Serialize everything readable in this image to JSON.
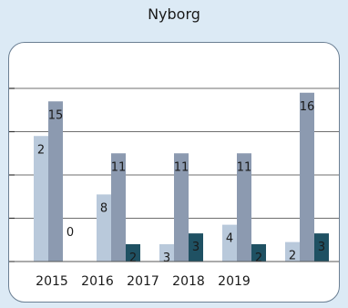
{
  "chart_data": {
    "type": "bar",
    "title": "Nyborg",
    "categories": [
      "2015",
      "2016",
      "2017",
      "2018",
      "2019"
    ],
    "series": [
      {
        "values": [
          29,
          15.5,
          4,
          8.5,
          4.5
        ],
        "labels": [
          "2",
          "8",
          "3",
          "4",
          "2"
        ],
        "color": "#b9c9db"
      },
      {
        "values": [
          37,
          25,
          25,
          25,
          39
        ],
        "labels": [
          "15",
          "11",
          "11",
          "11",
          "16"
        ],
        "color": "#8c9ab0"
      },
      {
        "values": [
          0,
          4,
          6.5,
          4,
          6.5
        ],
        "labels": [
          "0",
          "2",
          "3",
          "2",
          "3"
        ],
        "color": "#1f5163"
      }
    ],
    "ylim": [
      0,
      40
    ],
    "grid": true,
    "xlabel": "",
    "ylabel": ""
  }
}
